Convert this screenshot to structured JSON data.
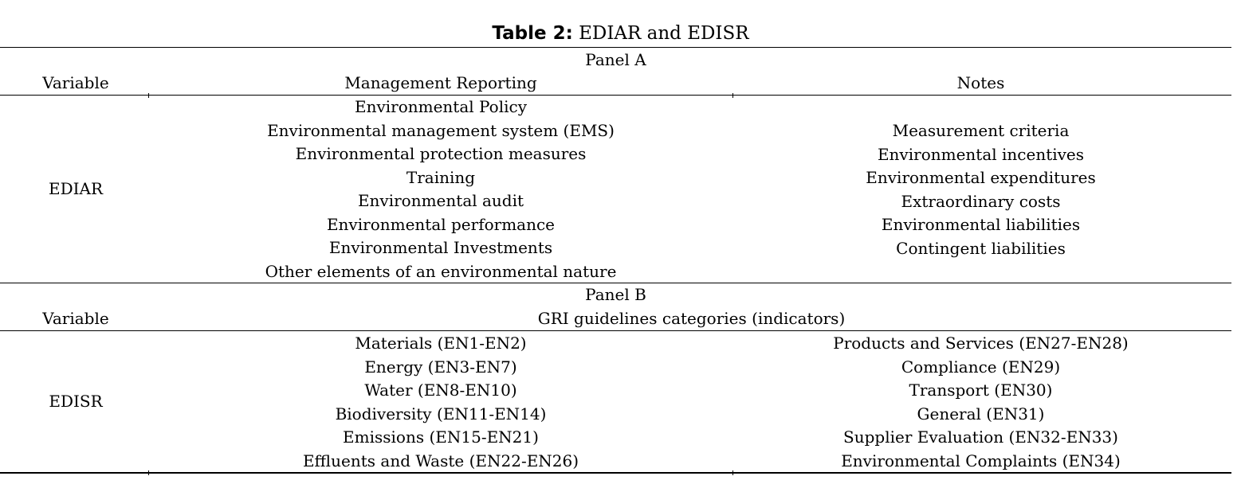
{
  "caption": {
    "bold": "Table 2:",
    "text": " EDIAR and EDISR"
  },
  "panel_a": {
    "label": "Panel A",
    "headers": {
      "variable": "Variable",
      "management": "Management Reporting",
      "notes": "Notes"
    },
    "variable": "EDIAR",
    "management_items": [
      "Environmental Policy",
      "Environmental management system (EMS)",
      "Environmental protection measures",
      "Training",
      "Environmental audit",
      "Environmental performance",
      "Environmental Investments",
      "Other elements of an environmental nature"
    ],
    "notes_items": [
      "Measurement criteria",
      "Environmental incentives",
      "Environmental expenditures",
      "Extraordinary costs",
      "Environmental liabilities",
      "Contingent liabilities"
    ]
  },
  "panel_b": {
    "label": "Panel B",
    "headers": {
      "variable": "Variable",
      "gri": "GRI guidelines categories (indicators)"
    },
    "variable": "EDISR",
    "left_items": [
      "Materials (EN1-EN2)",
      "Energy (EN3-EN7)",
      "Water (EN8-EN10)",
      "Biodiversity (EN11-EN14)",
      "Emissions (EN15-EN21)",
      "Effluents and Waste (EN22-EN26)"
    ],
    "right_items": [
      "Products and Services (EN27-EN28)",
      "Compliance (EN29)",
      "Transport (EN30)",
      "General (EN31)",
      "Supplier Evaluation (EN32-EN33)",
      "Environmental Complaints (EN34)"
    ]
  }
}
